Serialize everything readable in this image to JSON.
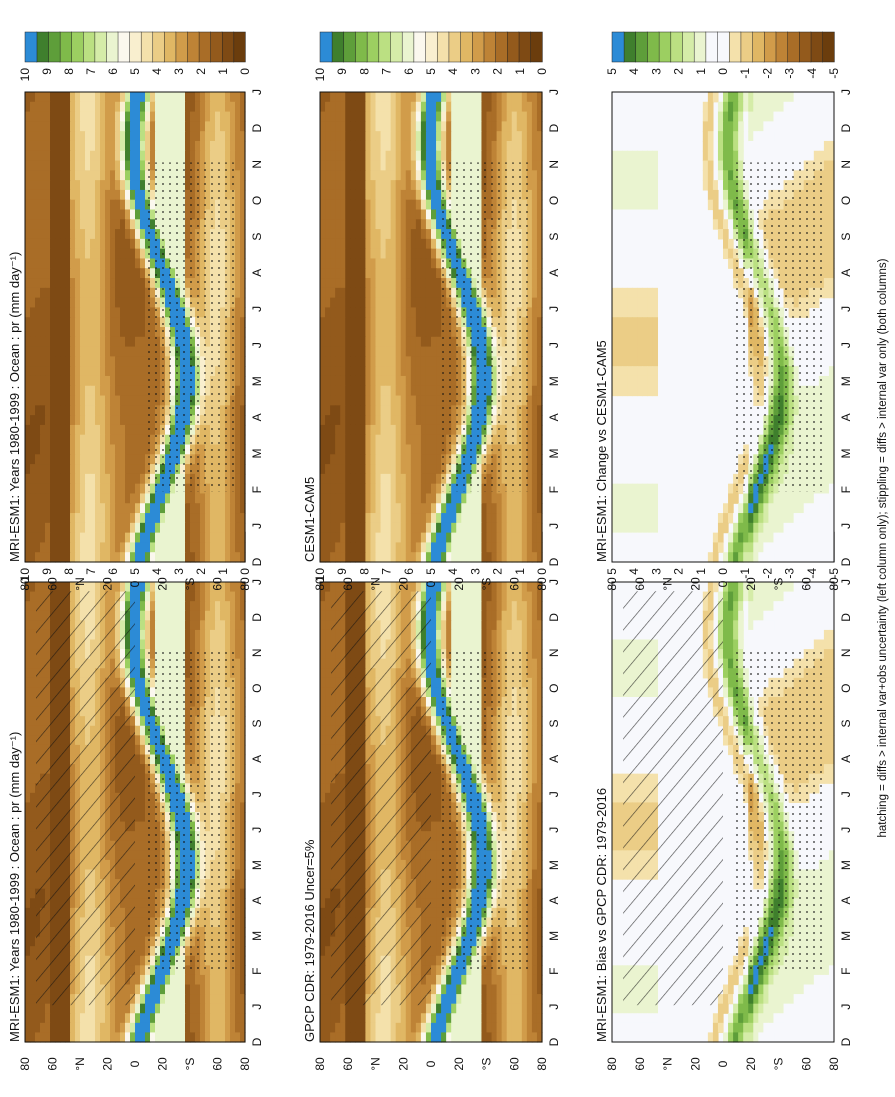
{
  "figure": {
    "footnote": "hatching = diffs > internal var+obs uncertainty (left column only); stippling = diffs > internal var only (both columns)"
  },
  "colors": {
    "precip_scale": [
      "#6b3d0d",
      "#7e4a14",
      "#935a1c",
      "#a96d27",
      "#be8336",
      "#d19c4a",
      "#e0b764",
      "#ebcd86",
      "#f4e1ab",
      "#f9efcf",
      "#fbf8ee",
      "#eaf4d0",
      "#d5eca8",
      "#bbe082",
      "#9ccf61",
      "#7fba4a",
      "#5e9e3a",
      "#3f7f2d",
      "#2c8bd6"
    ],
    "diff_scale": [
      "#6b3d0d",
      "#7e4a14",
      "#935a1c",
      "#a96d27",
      "#be8336",
      "#d19c4a",
      "#e0b764",
      "#ebcd86",
      "#f4e1ab",
      "#f7f8fc",
      "#f7f8fc",
      "#eaf4d0",
      "#d5eca8",
      "#bbe082",
      "#9ccf61",
      "#7fba4a",
      "#5e9e3a",
      "#3f7f2d",
      "#2c8bd6"
    ],
    "background": "#f7f8fc"
  },
  "axes": {
    "months": [
      "D",
      "J",
      "F",
      "M",
      "A",
      "M",
      "J",
      "J",
      "A",
      "S",
      "O",
      "N",
      "D",
      "J"
    ],
    "lat_labels": [
      "80",
      "60",
      "°N",
      "20",
      "0",
      "20",
      "°S",
      "60",
      "80"
    ]
  },
  "colorbars": {
    "precip_ticks": [
      "0",
      "1",
      "2",
      "3",
      "4",
      "5",
      "6",
      "7",
      "8",
      "9",
      "10"
    ],
    "diff_ticks": [
      "-5",
      "-4",
      "-3",
      "-2",
      "-1",
      "0",
      "1",
      "2",
      "3",
      "4",
      "5"
    ]
  },
  "chart_data": [
    {
      "type": "heatmap",
      "title": "MRI-ESM1: Years 1980-1999 : Ocean : pr (mm day⁻¹)",
      "x": [
        "J",
        "F",
        "M",
        "A",
        "M",
        "J",
        "J",
        "A",
        "S",
        "O",
        "N",
        "D"
      ],
      "y_labels": [
        "80",
        "60",
        "°N",
        "20",
        "0",
        "20",
        "°S",
        "60",
        "80"
      ],
      "colorbar": {
        "min": 0,
        "max": 10
      },
      "overlay": "hatching + stippling",
      "features": {
        "itcz_max_mm_day": 10,
        "itcz_lat_range": [
          -10,
          10
        ]
      }
    },
    {
      "type": "heatmap",
      "title": "MRI-ESM1: Years 1980-1999 : Ocean : pr (mm day⁻¹)",
      "x": [
        "J",
        "F",
        "M",
        "A",
        "M",
        "J",
        "J",
        "A",
        "S",
        "O",
        "N",
        "D"
      ],
      "y_labels": [
        "80",
        "60",
        "°N",
        "20",
        "0",
        "20",
        "°S",
        "60",
        "80"
      ],
      "colorbar": {
        "min": 0,
        "max": 10
      },
      "overlay": "stippling"
    },
    {
      "type": "heatmap",
      "title": "GPCP CDR: 1979-2016 Uncer=5%",
      "x": [
        "J",
        "F",
        "M",
        "A",
        "M",
        "J",
        "J",
        "A",
        "S",
        "O",
        "N",
        "D"
      ],
      "y_labels": [
        "80",
        "60",
        "°N",
        "20",
        "0",
        "20",
        "°S",
        "60",
        "80"
      ],
      "colorbar": {
        "min": 0,
        "max": 10
      },
      "overlay": "hatching + stippling"
    },
    {
      "type": "heatmap",
      "title": "CESM1-CAM5",
      "x": [
        "J",
        "F",
        "M",
        "A",
        "M",
        "J",
        "J",
        "A",
        "S",
        "O",
        "N",
        "D"
      ],
      "y_labels": [
        "80",
        "60",
        "°N",
        "20",
        "0",
        "20",
        "°S",
        "60",
        "80"
      ],
      "colorbar": {
        "min": 0,
        "max": 10
      },
      "overlay": "stippling"
    },
    {
      "type": "heatmap",
      "title": "MRI-ESM1: Bias vs GPCP CDR: 1979-2016",
      "x": [
        "J",
        "F",
        "M",
        "A",
        "M",
        "J",
        "J",
        "A",
        "S",
        "O",
        "N",
        "D"
      ],
      "y_labels": [
        "80",
        "60",
        "°N",
        "20",
        "0",
        "20",
        "°S",
        "60",
        "80"
      ],
      "colorbar": {
        "min": -5,
        "max": 5
      },
      "overlay": "hatching + stippling"
    },
    {
      "type": "heatmap",
      "title": "MRI-ESM1: Change vs CESM1-CAM5",
      "x": [
        "J",
        "F",
        "M",
        "A",
        "M",
        "J",
        "J",
        "A",
        "S",
        "O",
        "N",
        "D"
      ],
      "y_labels": [
        "80",
        "60",
        "°N",
        "20",
        "0",
        "20",
        "°S",
        "60",
        "80"
      ],
      "colorbar": {
        "min": -5,
        "max": 5
      },
      "overlay": "stippling"
    }
  ]
}
